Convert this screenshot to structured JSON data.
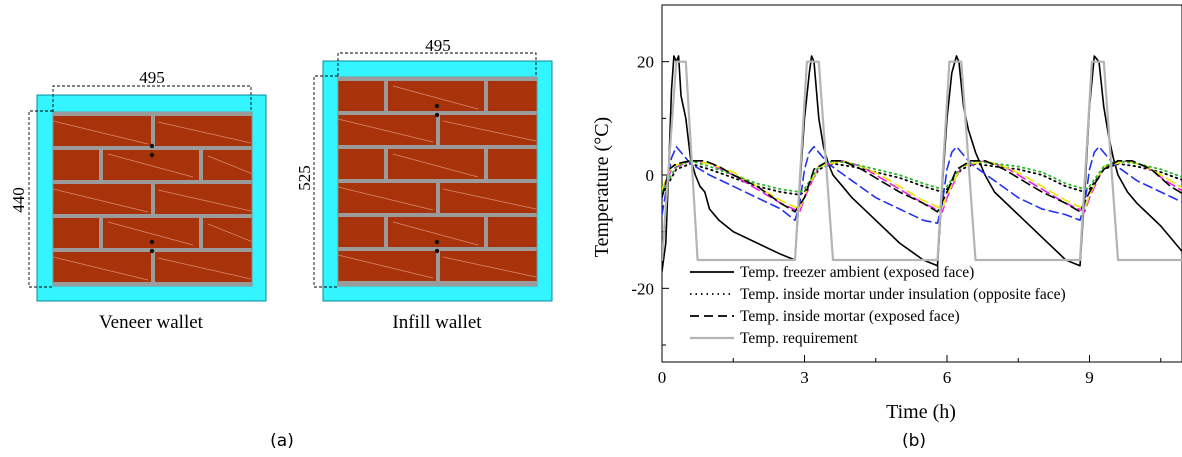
{
  "panel_a": {
    "caption": "(a)",
    "veneer": {
      "label": "Veneer wallet",
      "width_dim": "495",
      "height_dim": "440"
    },
    "infill": {
      "label": "Infill wallet",
      "width_dim": "495",
      "height_dim": "525"
    }
  },
  "panel_b": {
    "caption": "(b)"
  },
  "chart_data": {
    "type": "line",
    "title": "",
    "xlabel": "Time (h)",
    "ylabel": "Temperature (°C)",
    "xlim": [
      0,
      11
    ],
    "ylim": [
      -33,
      30
    ],
    "xticks": [
      0,
      3,
      6,
      9
    ],
    "yticks": [
      20,
      0,
      -20
    ],
    "tick_labels_x": [
      "0",
      "3",
      "6",
      "9"
    ],
    "tick_labels_y": [
      "20",
      "0",
      "-20"
    ],
    "legend_position": "lower-left",
    "series": [
      {
        "name": "Temp. freezer ambient (exposed face)",
        "color": "#000000",
        "style": "solid",
        "x": [
          0,
          0.08,
          0.15,
          0.2,
          0.25,
          0.3,
          0.35,
          0.4,
          0.5,
          0.6,
          0.7,
          0.8,
          0.9,
          1.0,
          1.2,
          1.5,
          2.0,
          2.5,
          2.8,
          2.9,
          3.0,
          3.1,
          3.15,
          3.2,
          3.3,
          3.4,
          3.5,
          3.6,
          3.8,
          4.0,
          4.5,
          5.0,
          5.5,
          5.8,
          5.9,
          6.0,
          6.1,
          6.2,
          6.25,
          6.35,
          6.45,
          6.6,
          6.8,
          7.0,
          7.5,
          8.0,
          8.5,
          8.8,
          8.9,
          9.0,
          9.1,
          9.2,
          9.3,
          9.4,
          9.5,
          9.6,
          9.8,
          10.0,
          10.5,
          11.0
        ],
        "y": [
          -17,
          -12,
          3,
          15,
          21,
          20,
          21,
          14,
          10,
          3,
          0,
          -2,
          -3,
          -6,
          -8,
          -10,
          -12,
          -14,
          -15,
          -2,
          10,
          18,
          21,
          20,
          10,
          5,
          2,
          0,
          -2,
          -4,
          -8,
          -12,
          -15,
          -16,
          -2,
          10,
          18,
          21,
          20,
          12,
          8,
          4,
          0,
          -3,
          -7,
          -11,
          -15,
          -16,
          -3,
          12,
          21,
          20,
          12,
          7,
          3,
          0,
          -3,
          -5,
          -9,
          -14
        ]
      },
      {
        "name": "Temp. inside mortar under insulation (opposite face)",
        "color": "#000000",
        "style": "dotted",
        "x": [
          0,
          0.3,
          0.6,
          1.0,
          1.5,
          2.0,
          2.5,
          2.9,
          3.0,
          3.3,
          3.6,
          4.0,
          4.5,
          5.0,
          5.5,
          5.9,
          6.0,
          6.3,
          6.6,
          7.0,
          7.5,
          8.0,
          8.5,
          8.9,
          9.0,
          9.3,
          9.6,
          10.0,
          10.5,
          11.0
        ],
        "y": [
          -3.5,
          1,
          2,
          1,
          -0.5,
          -2,
          -3,
          -3.5,
          -3,
          1,
          2,
          1.5,
          0.5,
          -0.5,
          -2,
          -3,
          -2.5,
          1,
          2,
          1.5,
          1,
          0,
          -2,
          -3,
          -2.5,
          1,
          2,
          1.5,
          0.5,
          -1
        ]
      },
      {
        "name": "Temp. inside mortar (exposed face)",
        "color": "#000000",
        "style": "dashed",
        "x": [
          0,
          0.15,
          0.3,
          0.6,
          0.9,
          1.2,
          1.5,
          2.0,
          2.5,
          2.8,
          3.0,
          3.2,
          3.5,
          3.8,
          4.2,
          4.6,
          5.0,
          5.5,
          5.8,
          6.0,
          6.2,
          6.5,
          6.8,
          7.2,
          7.6,
          8.0,
          8.5,
          8.8,
          9.0,
          9.3,
          9.6,
          9.9,
          10.3,
          10.7,
          11.0
        ],
        "y": [
          -4,
          1,
          2,
          2.5,
          2.5,
          1.5,
          0,
          -2,
          -5,
          -6.5,
          -4,
          1,
          2.5,
          2.5,
          1,
          -1,
          -3,
          -5,
          -6.5,
          -3,
          1,
          2.5,
          2.5,
          1,
          -1,
          -3,
          -5,
          -6.5,
          -3,
          1,
          2.5,
          2.5,
          1,
          -2,
          -3.5
        ]
      },
      {
        "name": "",
        "color": "#2233ee",
        "style": "dashed",
        "x": [
          0,
          0.1,
          0.2,
          0.3,
          0.6,
          1.0,
          1.5,
          2.0,
          2.5,
          2.8,
          2.9,
          3.0,
          3.1,
          3.2,
          3.5,
          4.0,
          4.5,
          5.0,
          5.5,
          5.8,
          5.9,
          6.0,
          6.1,
          6.2,
          6.5,
          7.0,
          7.5,
          8.0,
          8.5,
          8.8,
          8.9,
          9.0,
          9.1,
          9.2,
          9.5,
          10.0,
          10.5,
          11.0
        ],
        "y": [
          -7,
          -2,
          3,
          5,
          2,
          0,
          -2,
          -4,
          -6,
          -8,
          -5,
          1,
          4,
          5,
          2,
          -1,
          -4,
          -6,
          -8,
          -8.5,
          -5,
          1,
          4,
          5,
          2,
          -1,
          -4,
          -6,
          -7,
          -8,
          -5,
          1,
          4,
          5,
          2,
          -1,
          -3,
          -5
        ]
      },
      {
        "name": "",
        "color": "#ee1ee6",
        "style": "dashed",
        "x": [
          0,
          0.2,
          0.6,
          1.0,
          1.5,
          2.0,
          2.5,
          2.9,
          3.0,
          3.3,
          3.8,
          4.2,
          4.6,
          5.0,
          5.5,
          5.9,
          6.0,
          6.3,
          6.8,
          7.2,
          7.6,
          8.0,
          8.5,
          8.9,
          9.0,
          9.3,
          9.8,
          10.2,
          10.6,
          11.0
        ],
        "y": [
          -3,
          1,
          2.5,
          2,
          0,
          -2.5,
          -5,
          -6.5,
          -4,
          1.5,
          2.5,
          1.5,
          -0.5,
          -2.5,
          -5,
          -6.5,
          -4,
          1.5,
          2.5,
          1.5,
          -0.5,
          -2.5,
          -5,
          -6.5,
          -4,
          1.5,
          2.5,
          1.5,
          -1,
          -3
        ]
      },
      {
        "name": "",
        "color": "#e8e800",
        "style": "dashed",
        "x": [
          0,
          0.2,
          0.6,
          1.0,
          1.5,
          2.0,
          2.5,
          2.9,
          3.0,
          3.3,
          3.8,
          4.2,
          4.6,
          5.0,
          5.5,
          5.9,
          6.0,
          6.3,
          6.8,
          7.2,
          7.6,
          8.0,
          8.5,
          8.9,
          9.0,
          9.3,
          9.8,
          10.2,
          10.6,
          11.0
        ],
        "y": [
          -2.5,
          1.5,
          2.5,
          2,
          0.5,
          -2,
          -4.5,
          -6,
          -3.5,
          1.5,
          2.5,
          1.5,
          0,
          -2,
          -4.5,
          -6,
          -3.5,
          1.5,
          2.5,
          1.5,
          0,
          -2,
          -4.5,
          -6,
          -3.5,
          1.5,
          2.5,
          1.5,
          -0.5,
          -2.5
        ]
      },
      {
        "name": "",
        "color": "#22bb22",
        "style": "dotted",
        "x": [
          0,
          0.3,
          0.6,
          1.0,
          1.5,
          2.0,
          2.5,
          2.9,
          3.0,
          3.3,
          3.6,
          4.0,
          4.5,
          5.0,
          5.5,
          5.9,
          6.0,
          6.3,
          6.6,
          7.0,
          7.5,
          8.0,
          8.5,
          8.9,
          9.0,
          9.3,
          9.6,
          10.0,
          10.5,
          11.0
        ],
        "y": [
          -3,
          1.5,
          2.5,
          1.5,
          0,
          -1.5,
          -2.5,
          -3,
          -2.5,
          1.5,
          2.5,
          2,
          1,
          0,
          -1.5,
          -2.5,
          -2,
          1.5,
          2.5,
          2,
          1.5,
          0.5,
          -1.5,
          -2.5,
          -2,
          1.5,
          2.5,
          2,
          1,
          -0.5
        ]
      },
      {
        "name": "Temp. requirement",
        "color": "#b4b4b4",
        "style": "solid",
        "x": [
          0,
          0.3,
          0.5,
          0.75,
          2.8,
          3.05,
          3.3,
          3.6,
          5.8,
          6.05,
          6.3,
          6.6,
          8.8,
          9.05,
          9.3,
          9.6,
          11.0
        ],
        "y": [
          -15,
          20,
          20,
          -15,
          -15,
          20,
          20,
          -15,
          -15,
          20,
          20,
          -15,
          -15,
          20,
          20,
          -15,
          -15
        ]
      }
    ]
  }
}
